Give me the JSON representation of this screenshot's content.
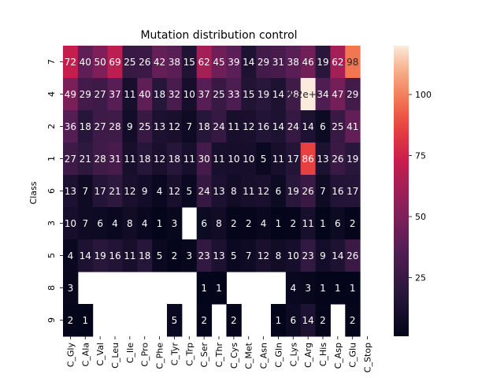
{
  "chart_data": {
    "type": "heatmap",
    "title": "Mutation distribution control",
    "xlabel": "",
    "ylabel": "Class",
    "x_categories": [
      "C_Gly",
      "C_Ala",
      "C_Val",
      "C_Leu",
      "C_Ile",
      "C_Pro",
      "C_Phe",
      "C_Tyr",
      "C_Trp",
      "C_Ser",
      "C_Thr",
      "C_Cys",
      "C_Met",
      "C_Asn",
      "C_Gln",
      "C_Lys",
      "C_Arg",
      "C_His",
      "C_Asp",
      "C_Glu",
      "C_Stop"
    ],
    "y_categories": [
      "7",
      "4",
      "2",
      "1",
      "6",
      "3",
      "5",
      "8",
      "9"
    ],
    "values": [
      [
        72,
        40,
        50,
        69,
        25,
        26,
        42,
        38,
        15,
        62,
        45,
        39,
        14,
        29,
        31,
        38,
        46,
        19,
        62,
        98,
        null
      ],
      [
        49,
        29,
        27,
        37,
        11,
        40,
        18,
        32,
        10,
        37,
        25,
        33,
        15,
        19,
        14,
        28,
        120,
        34,
        47,
        29,
        null
      ],
      [
        36,
        18,
        27,
        28,
        9,
        25,
        13,
        12,
        7,
        18,
        24,
        11,
        12,
        16,
        14,
        24,
        14,
        6,
        25,
        41,
        null
      ],
      [
        27,
        21,
        28,
        31,
        11,
        18,
        12,
        18,
        11,
        30,
        11,
        10,
        10,
        5,
        11,
        17,
        86,
        13,
        26,
        19,
        null
      ],
      [
        13,
        7,
        17,
        21,
        12,
        9,
        4,
        12,
        5,
        24,
        13,
        8,
        11,
        12,
        6,
        19,
        26,
        7,
        16,
        17,
        null
      ],
      [
        10,
        7,
        6,
        4,
        8,
        4,
        1,
        3,
        null,
        6,
        8,
        2,
        2,
        4,
        1,
        2,
        11,
        1,
        6,
        2,
        null
      ],
      [
        4,
        14,
        19,
        16,
        11,
        18,
        5,
        2,
        3,
        23,
        13,
        5,
        7,
        12,
        8,
        10,
        23,
        9,
        14,
        26,
        null
      ],
      [
        3,
        null,
        null,
        null,
        null,
        null,
        null,
        null,
        null,
        1,
        1,
        null,
        null,
        null,
        null,
        4,
        3,
        1,
        1,
        1,
        null
      ],
      [
        2,
        1,
        null,
        null,
        null,
        null,
        null,
        5,
        null,
        2,
        null,
        2,
        null,
        null,
        1,
        6,
        14,
        2,
        null,
        2,
        null
      ]
    ],
    "cell_labels": [
      [
        "72",
        "40",
        "50",
        "69",
        "25",
        "26",
        "42",
        "38",
        "15",
        "62",
        "45",
        "39",
        "14",
        "29",
        "31",
        "38",
        "46",
        "19",
        "62",
        "98",
        ""
      ],
      [
        "49",
        "29",
        "27",
        "37",
        "11",
        "40",
        "18",
        "32",
        "10",
        "37",
        "25",
        "33",
        "15",
        "19",
        "14",
        "28",
        "1.2e+02",
        "34",
        "47",
        "29",
        ""
      ],
      [
        "36",
        "18",
        "27",
        "28",
        "9",
        "25",
        "13",
        "12",
        "7",
        "18",
        "24",
        "11",
        "12",
        "16",
        "14",
        "24",
        "14",
        "6",
        "25",
        "41",
        ""
      ],
      [
        "27",
        "21",
        "28",
        "31",
        "11",
        "18",
        "12",
        "18",
        "11",
        "30",
        "11",
        "10",
        "10",
        "5",
        "11",
        "17",
        "86",
        "13",
        "26",
        "19",
        ""
      ],
      [
        "13",
        "7",
        "17",
        "21",
        "12",
        "9",
        "4",
        "12",
        "5",
        "24",
        "13",
        "8",
        "11",
        "12",
        "6",
        "19",
        "26",
        "7",
        "16",
        "17",
        ""
      ],
      [
        "10",
        "7",
        "6",
        "4",
        "8",
        "4",
        "1",
        "3",
        "",
        "6",
        "8",
        "2",
        "2",
        "4",
        "1",
        "2",
        "11",
        "1",
        "6",
        "2",
        ""
      ],
      [
        "4",
        "14",
        "19",
        "16",
        "11",
        "18",
        "5",
        "2",
        "3",
        "23",
        "13",
        "5",
        "7",
        "12",
        "8",
        "10",
        "23",
        "9",
        "14",
        "26",
        ""
      ],
      [
        "3",
        "",
        "",
        "",
        "",
        "",
        "",
        "",
        "",
        "1",
        "1",
        "",
        "",
        "",
        "",
        "4",
        "3",
        "1",
        "1",
        "1",
        ""
      ],
      [
        "2",
        "1",
        "",
        "",
        "",
        "",
        "",
        "5",
        "",
        "2",
        "",
        "2",
        "",
        "",
        "1",
        "6",
        "14",
        "2",
        "",
        "2",
        ""
      ]
    ],
    "vmin": 1,
    "vmax": 120,
    "colormap": "rocket",
    "colorbar": {
      "ticks": [
        25,
        50,
        75,
        100
      ],
      "tick_labels": [
        "25",
        "50",
        "75",
        "100"
      ]
    },
    "grid": false,
    "legend": "colorbar-right"
  }
}
